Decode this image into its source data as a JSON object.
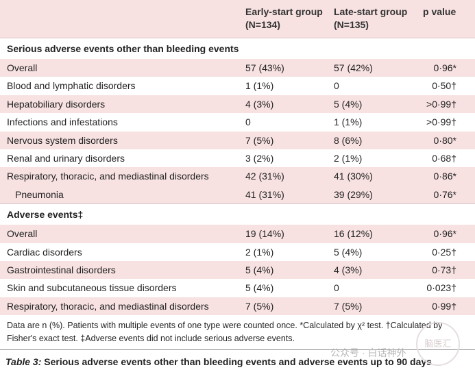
{
  "header": {
    "col1_line1": "Early-start group",
    "col1_line2": "(N=134)",
    "col2_line1": "Late-start group",
    "col2_line2": "(N=135)",
    "col3": "p value"
  },
  "section1": {
    "title": "Serious adverse events other than bleeding events",
    "rows": [
      {
        "label": "Overall",
        "early": "57 (43%)",
        "late": "57 (42%)",
        "p": "0·96*"
      },
      {
        "label": "Blood and lymphatic disorders",
        "early": "1 (1%)",
        "late": "0",
        "p": "0·50†"
      },
      {
        "label": "Hepatobiliary disorders",
        "early": "4 (3%)",
        "late": "5 (4%)",
        "p": ">0·99†"
      },
      {
        "label": "Infections and infestations",
        "early": "0",
        "late": "1 (1%)",
        "p": ">0·99†"
      },
      {
        "label": "Nervous system disorders",
        "early": "7 (5%)",
        "late": "8 (6%)",
        "p": "0·80*"
      },
      {
        "label": "Renal and urinary disorders",
        "early": "3 (2%)",
        "late": "2 (1%)",
        "p": "0·68†"
      },
      {
        "label": "Respiratory, thoracic, and mediastinal disorders",
        "early": "42 (31%)",
        "late": "41 (30%)",
        "p": "0·86*"
      },
      {
        "label": "Pneumonia",
        "early": "41 (31%)",
        "late": "39 (29%)",
        "p": "0·76*"
      }
    ]
  },
  "section2": {
    "title": "Adverse events‡",
    "rows": [
      {
        "label": "Overall",
        "early": "19 (14%)",
        "late": "16 (12%)",
        "p": "0·96*"
      },
      {
        "label": "Cardiac disorders",
        "early": "2 (1%)",
        "late": "5 (4%)",
        "p": "0·25†"
      },
      {
        "label": "Gastrointestinal disorders",
        "early": "5 (4%)",
        "late": "4 (3%)",
        "p": "0·73†"
      },
      {
        "label": "Skin and subcutaneous tissue disorders",
        "early": "5 (4%)",
        "late": "0",
        "p": "0·023†"
      },
      {
        "label": "Respiratory, thoracic, and mediastinal disorders",
        "early": "7 (5%)",
        "late": "7 (5%)",
        "p": "0·99†"
      }
    ]
  },
  "footnote": "Data are n (%). Patients with multiple events of one type were counted once. *Calculated by χ² test. †Calculated by Fisher's exact test. ‡Adverse events did not include serious adverse events.",
  "caption": {
    "prefix": "Table 3:",
    "text": " Serious adverse events other than bleeding events and adverse events up to 90 days"
  },
  "watermark": {
    "text": "公众号 · 白话神外",
    "logo_text": "脑医汇"
  }
}
